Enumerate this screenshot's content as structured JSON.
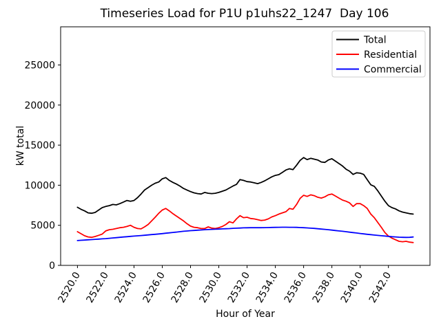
{
  "title": "Timeseries Load for P1U p1uhs22_1247  Day 106",
  "chart_data": {
    "type": "line",
    "title": "Timeseries Load for P1U p1uhs22_1247  Day 106",
    "xlabel": "Hour of Year",
    "ylabel": "kW total",
    "grid": false,
    "legend_position": "upper right",
    "xlim": [
      2518.81,
      2544.94
    ],
    "ylim": [
      0,
      29760
    ],
    "x_start": 2520.0,
    "x_step": 0.25,
    "x_tick_labels": [
      "2520.0",
      "2522.0",
      "2524.0",
      "2526.0",
      "2528.0",
      "2530.0",
      "2532.0",
      "2534.0",
      "2536.0",
      "2538.0",
      "2540.0",
      "2542.0"
    ],
    "x_tick_values": [
      2520,
      2522,
      2524,
      2526,
      2528,
      2530,
      2532,
      2534,
      2536,
      2538,
      2540,
      2542
    ],
    "y_tick_labels": [
      "0",
      "5000",
      "10000",
      "15000",
      "20000",
      "25000"
    ],
    "y_tick_values": [
      0,
      5000,
      10000,
      15000,
      20000,
      25000
    ],
    "series": [
      {
        "name": "Total",
        "color": "#000000",
        "values": [
          7250,
          7000,
          6800,
          6550,
          6500,
          6600,
          6900,
          7200,
          7350,
          7450,
          7600,
          7550,
          7700,
          7900,
          8100,
          8000,
          8100,
          8450,
          8900,
          9400,
          9700,
          10000,
          10250,
          10400,
          10800,
          10950,
          10600,
          10350,
          10150,
          9900,
          9600,
          9400,
          9200,
          9050,
          8950,
          8900,
          9100,
          9000,
          8950,
          9000,
          9100,
          9250,
          9400,
          9650,
          9900,
          10100,
          10700,
          10600,
          10450,
          10400,
          10300,
          10200,
          10350,
          10550,
          10800,
          11050,
          11230,
          11320,
          11600,
          11900,
          12050,
          11950,
          12500,
          13100,
          13450,
          13200,
          13350,
          13250,
          13150,
          12900,
          12850,
          13150,
          13300,
          13000,
          12700,
          12400,
          12000,
          11750,
          11350,
          11550,
          11500,
          11350,
          10700,
          10050,
          9850,
          9300,
          8650,
          8000,
          7450,
          7200,
          7050,
          6800,
          6650,
          6550,
          6450,
          6400
        ]
      },
      {
        "name": "Residential",
        "color": "#ff0000",
        "values": [
          4200,
          3950,
          3700,
          3550,
          3500,
          3600,
          3750,
          3900,
          4300,
          4450,
          4500,
          4600,
          4700,
          4750,
          4850,
          5000,
          4750,
          4600,
          4550,
          4800,
          5100,
          5550,
          6000,
          6500,
          6900,
          7100,
          6800,
          6450,
          6150,
          5850,
          5550,
          5200,
          4900,
          4750,
          4700,
          4600,
          4600,
          4800,
          4650,
          4600,
          4700,
          4850,
          5100,
          5450,
          5300,
          5800,
          6200,
          5950,
          6000,
          5850,
          5800,
          5700,
          5600,
          5650,
          5800,
          6050,
          6200,
          6400,
          6550,
          6700,
          7100,
          7000,
          7600,
          8350,
          8750,
          8600,
          8800,
          8700,
          8500,
          8400,
          8550,
          8800,
          8900,
          8650,
          8400,
          8150,
          8000,
          7800,
          7350,
          7700,
          7700,
          7450,
          7100,
          6400,
          5950,
          5350,
          4750,
          4100,
          3650,
          3400,
          3200,
          3000,
          2950,
          3000,
          2900,
          2850
        ]
      },
      {
        "name": "Commercial",
        "color": "#0000ff",
        "values": [
          3100,
          3130,
          3160,
          3190,
          3220,
          3250,
          3280,
          3310,
          3340,
          3380,
          3420,
          3460,
          3500,
          3540,
          3580,
          3620,
          3650,
          3690,
          3720,
          3760,
          3800,
          3840,
          3880,
          3920,
          3960,
          4010,
          4060,
          4110,
          4150,
          4200,
          4250,
          4290,
          4330,
          4360,
          4390,
          4420,
          4450,
          4470,
          4490,
          4510,
          4530,
          4550,
          4570,
          4590,
          4620,
          4640,
          4660,
          4680,
          4690,
          4700,
          4700,
          4700,
          4700,
          4710,
          4720,
          4730,
          4740,
          4750,
          4760,
          4760,
          4750,
          4750,
          4740,
          4720,
          4700,
          4670,
          4640,
          4610,
          4570,
          4530,
          4490,
          4450,
          4400,
          4350,
          4300,
          4250,
          4200,
          4140,
          4090,
          4040,
          3980,
          3930,
          3880,
          3830,
          3780,
          3740,
          3700,
          3660,
          3620,
          3580,
          3550,
          3520,
          3500,
          3490,
          3500,
          3540
        ]
      }
    ]
  }
}
